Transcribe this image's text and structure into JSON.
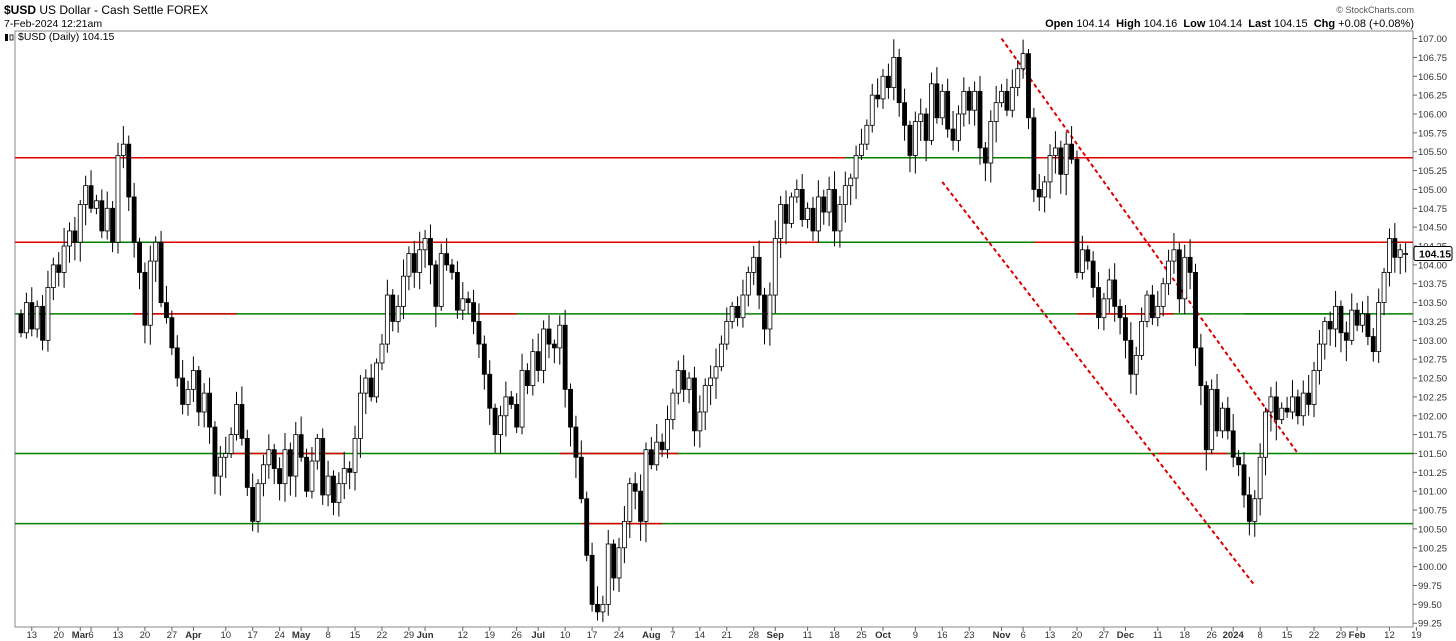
{
  "header": {
    "symbol": "$USD",
    "description": "US Dollar - Cash Settle FOREX",
    "timestamp": "7-Feb-2024 12:21am",
    "legend": "$USD (Daily) 104.15",
    "brand": "© StockCharts.com",
    "stats": {
      "open_label": "Open",
      "open": "104.14",
      "high_label": "High",
      "high": "104.16",
      "low_label": "Low",
      "low": "104.14",
      "last_label": "Last",
      "last": "104.15",
      "chg_label": "Chg",
      "chg": "+0.08 (+0.08%)"
    }
  },
  "chart_data": {
    "type": "candlestick",
    "colors": {
      "up": "#ffffff",
      "down": "#000000",
      "resistance": "#dd0000",
      "support": "#008000",
      "trend": "#dd0000"
    },
    "y_axis": {
      "side": "right",
      "range": [
        99.2,
        107.1
      ],
      "ticks": [
        "99.25",
        "99.50",
        "99.75",
        "100.00",
        "100.25",
        "100.50",
        "100.75",
        "101.00",
        "101.25",
        "101.50",
        "101.75",
        "102.00",
        "102.25",
        "102.50",
        "102.75",
        "103.00",
        "103.25",
        "103.50",
        "103.75",
        "104.00",
        "104.25",
        "104.50",
        "104.75",
        "105.00",
        "105.25",
        "105.50",
        "105.75",
        "106.00",
        "106.25",
        "106.50",
        "106.75",
        "107.00"
      ]
    },
    "x_axis": {
      "n_days": 258,
      "labels": [
        {
          "label": "13",
          "i": 2
        },
        {
          "label": "20",
          "i": 7
        },
        {
          "label": "Mar",
          "i": 11,
          "bold": true
        },
        {
          "label": "6",
          "i": 13
        },
        {
          "label": "13",
          "i": 18
        },
        {
          "label": "20",
          "i": 23
        },
        {
          "label": "27",
          "i": 28
        },
        {
          "label": "Apr",
          "i": 32,
          "bold": true
        },
        {
          "label": "10",
          "i": 38
        },
        {
          "label": "17",
          "i": 43
        },
        {
          "label": "24",
          "i": 48
        },
        {
          "label": "May",
          "i": 52,
          "bold": true
        },
        {
          "label": "8",
          "i": 57
        },
        {
          "label": "15",
          "i": 62
        },
        {
          "label": "22",
          "i": 67
        },
        {
          "label": "29",
          "i": 72
        },
        {
          "label": "Jun",
          "i": 75,
          "bold": true
        },
        {
          "label": "12",
          "i": 82
        },
        {
          "label": "19",
          "i": 87
        },
        {
          "label": "26",
          "i": 92
        },
        {
          "label": "Jul",
          "i": 96,
          "bold": true
        },
        {
          "label": "10",
          "i": 101
        },
        {
          "label": "17",
          "i": 106
        },
        {
          "label": "24",
          "i": 111
        },
        {
          "label": "Aug",
          "i": 117,
          "bold": true
        },
        {
          "label": "7",
          "i": 121
        },
        {
          "label": "14",
          "i": 126
        },
        {
          "label": "21",
          "i": 131
        },
        {
          "label": "28",
          "i": 136
        },
        {
          "label": "Sep",
          "i": 140,
          "bold": true
        },
        {
          "label": "11",
          "i": 146
        },
        {
          "label": "18",
          "i": 151
        },
        {
          "label": "25",
          "i": 156
        },
        {
          "label": "Oct",
          "i": 160,
          "bold": true
        },
        {
          "label": "9",
          "i": 166
        },
        {
          "label": "16",
          "i": 171
        },
        {
          "label": "23",
          "i": 176
        },
        {
          "label": "Nov",
          "i": 182,
          "bold": true
        },
        {
          "label": "6",
          "i": 186
        },
        {
          "label": "13",
          "i": 191
        },
        {
          "label": "20",
          "i": 196
        },
        {
          "label": "27",
          "i": 201
        },
        {
          "label": "Dec",
          "i": 205,
          "bold": true
        },
        {
          "label": "11",
          "i": 211
        },
        {
          "label": "18",
          "i": 216
        },
        {
          "label": "26",
          "i": 221
        },
        {
          "label": "2024",
          "i": 225,
          "bold": true
        },
        {
          "label": "8",
          "i": 230
        },
        {
          "label": "15",
          "i": 235
        },
        {
          "label": "22",
          "i": 240
        },
        {
          "label": "29",
          "i": 245
        },
        {
          "label": "Feb",
          "i": 248,
          "bold": true
        },
        {
          "label": "12",
          "i": 254
        },
        {
          "label": "19",
          "i": 259
        }
      ]
    },
    "horizontal_lines": [
      {
        "color": "resistance",
        "segments": [
          {
            "y": 105.42,
            "x0": 0,
            "x1": 258
          }
        ]
      },
      {
        "color": "resistance",
        "segments": [
          {
            "y": 104.3,
            "x0": 0,
            "x1": 258
          }
        ]
      },
      {
        "color": "support",
        "segments": [
          {
            "y": 103.35,
            "x0": 0,
            "x1": 258
          }
        ]
      },
      {
        "color": "support",
        "segments": [
          {
            "y": 101.5,
            "x0": 0,
            "x1": 258
          }
        ]
      },
      {
        "color": "support",
        "segments": [
          {
            "y": 100.57,
            "x0": 0,
            "x1": 258
          }
        ]
      },
      {
        "color": "support",
        "segments": [
          {
            "y": 105.42,
            "x0": 153,
            "x1": 188
          },
          {
            "y": 104.3,
            "x0": 10,
            "x1": 26
          },
          {
            "y": 104.3,
            "x0": 148,
            "x1": 188
          },
          {
            "y": 103.35,
            "x0": 227,
            "x1": 250
          }
        ]
      },
      {
        "color": "resistance",
        "segments": [
          {
            "y": 103.35,
            "x0": 21,
            "x1": 40
          },
          {
            "y": 103.35,
            "x0": 85,
            "x1": 92
          },
          {
            "y": 103.35,
            "x0": 196,
            "x1": 214
          },
          {
            "y": 101.5,
            "x0": 39,
            "x1": 60
          },
          {
            "y": 101.5,
            "x0": 100,
            "x1": 122
          },
          {
            "y": 101.5,
            "x0": 211,
            "x1": 224
          },
          {
            "y": 100.57,
            "x0": 104,
            "x1": 119
          }
        ]
      }
    ],
    "trend_lines": [
      {
        "from": {
          "i": 182,
          "y": 107.0
        },
        "to": {
          "i": 237,
          "y": 101.5
        }
      },
      {
        "from": {
          "i": 171,
          "y": 105.1
        },
        "to": {
          "i": 229,
          "y": 99.75
        }
      }
    ],
    "candles": [
      [
        103.35,
        103.1
      ],
      [
        103.1,
        103.5
      ],
      [
        103.5,
        103.15
      ],
      [
        103.15,
        103.45
      ],
      [
        103.45,
        103.0
      ],
      [
        103.0,
        103.7
      ],
      [
        103.7,
        104.0
      ],
      [
        104.0,
        103.9
      ],
      [
        103.9,
        104.25
      ],
      [
        104.25,
        104.45
      ],
      [
        104.45,
        104.3
      ],
      [
        104.3,
        104.8
      ],
      [
        104.8,
        105.05
      ],
      [
        105.05,
        104.75
      ],
      [
        104.75,
        104.85
      ],
      [
        104.85,
        104.45
      ],
      [
        104.45,
        104.75
      ],
      [
        104.75,
        104.3
      ],
      [
        104.3,
        105.45
      ],
      [
        105.45,
        105.6
      ],
      [
        105.6,
        104.9
      ],
      [
        104.9,
        104.3
      ],
      [
        104.3,
        103.9
      ],
      [
        103.9,
        103.2
      ],
      [
        103.2,
        104.05
      ],
      [
        104.05,
        104.3
      ],
      [
        104.3,
        103.5
      ],
      [
        103.5,
        103.3
      ],
      [
        103.3,
        102.9
      ],
      [
        102.9,
        102.5
      ],
      [
        102.5,
        102.15
      ],
      [
        102.15,
        102.35
      ],
      [
        102.35,
        102.6
      ],
      [
        102.6,
        102.05
      ],
      [
        102.05,
        102.3
      ],
      [
        102.3,
        101.85
      ],
      [
        101.85,
        101.2
      ],
      [
        101.2,
        101.45
      ],
      [
        101.45,
        101.5
      ],
      [
        101.5,
        101.75
      ],
      [
        101.75,
        102.15
      ],
      [
        102.15,
        101.7
      ],
      [
        101.7,
        101.05
      ],
      [
        101.05,
        100.6
      ],
      [
        100.6,
        101.1
      ],
      [
        101.1,
        101.35
      ],
      [
        101.35,
        101.55
      ],
      [
        101.55,
        101.3
      ],
      [
        101.3,
        101.1
      ],
      [
        101.1,
        101.55
      ],
      [
        101.55,
        101.2
      ],
      [
        101.2,
        101.75
      ],
      [
        101.75,
        101.45
      ],
      [
        101.45,
        101.0
      ],
      [
        101.0,
        101.4
      ],
      [
        101.4,
        101.7
      ],
      [
        101.7,
        100.95
      ],
      [
        100.95,
        101.2
      ],
      [
        101.2,
        100.85
      ],
      [
        100.85,
        101.1
      ],
      [
        101.1,
        101.3
      ],
      [
        101.3,
        101.25
      ],
      [
        101.25,
        101.7
      ],
      [
        101.7,
        102.3
      ],
      [
        102.3,
        102.5
      ],
      [
        102.5,
        102.25
      ],
      [
        102.25,
        102.7
      ],
      [
        102.7,
        102.95
      ],
      [
        102.95,
        103.6
      ],
      [
        103.6,
        103.25
      ],
      [
        103.25,
        103.45
      ],
      [
        103.45,
        103.85
      ],
      [
        103.85,
        104.15
      ],
      [
        104.15,
        103.9
      ],
      [
        103.9,
        104.2
      ],
      [
        104.2,
        104.35
      ],
      [
        104.35,
        104.0
      ],
      [
        104.0,
        103.45
      ],
      [
        103.45,
        104.15
      ],
      [
        104.15,
        104.0
      ],
      [
        104.0,
        103.9
      ],
      [
        103.9,
        103.4
      ],
      [
        103.4,
        103.55
      ],
      [
        103.55,
        103.5
      ],
      [
        103.5,
        103.25
      ],
      [
        103.25,
        102.95
      ],
      [
        102.95,
        102.55
      ],
      [
        102.55,
        102.1
      ],
      [
        102.1,
        101.75
      ],
      [
        101.75,
        102.0
      ],
      [
        102.0,
        102.25
      ],
      [
        102.25,
        102.15
      ],
      [
        102.15,
        101.85
      ],
      [
        101.85,
        102.6
      ],
      [
        102.6,
        102.4
      ],
      [
        102.4,
        102.85
      ],
      [
        102.85,
        102.6
      ],
      [
        102.6,
        103.15
      ],
      [
        103.15,
        102.95
      ],
      [
        102.95,
        102.9
      ],
      [
        102.9,
        103.2
      ],
      [
        103.2,
        102.35
      ],
      [
        102.35,
        101.85
      ],
      [
        101.85,
        101.45
      ],
      [
        101.45,
        100.9
      ],
      [
        100.9,
        100.15
      ],
      [
        100.15,
        99.5
      ],
      [
        99.5,
        99.4
      ],
      [
        99.4,
        99.5
      ],
      [
        99.5,
        100.3
      ],
      [
        100.3,
        99.85
      ],
      [
        99.85,
        100.25
      ],
      [
        100.25,
        100.6
      ],
      [
        100.6,
        101.1
      ],
      [
        101.1,
        101.0
      ],
      [
        101.0,
        100.6
      ],
      [
        100.6,
        101.55
      ],
      [
        101.55,
        101.35
      ],
      [
        101.35,
        101.65
      ],
      [
        101.65,
        101.55
      ],
      [
        101.55,
        101.95
      ],
      [
        101.95,
        102.3
      ],
      [
        102.3,
        102.6
      ],
      [
        102.6,
        102.35
      ],
      [
        102.35,
        102.5
      ],
      [
        102.5,
        101.8
      ],
      [
        101.8,
        102.05
      ],
      [
        102.05,
        102.4
      ],
      [
        102.4,
        102.5
      ],
      [
        102.5,
        102.65
      ],
      [
        102.65,
        102.95
      ],
      [
        102.95,
        103.25
      ],
      [
        103.25,
        103.45
      ],
      [
        103.45,
        103.3
      ],
      [
        103.3,
        103.6
      ],
      [
        103.6,
        103.9
      ],
      [
        103.9,
        104.1
      ],
      [
        104.1,
        103.6
      ],
      [
        103.6,
        103.15
      ],
      [
        103.15,
        103.6
      ],
      [
        103.6,
        104.35
      ],
      [
        104.35,
        104.8
      ],
      [
        104.8,
        104.55
      ],
      [
        104.55,
        104.9
      ],
      [
        104.9,
        105.0
      ],
      [
        105.0,
        104.6
      ],
      [
        104.6,
        104.75
      ],
      [
        104.75,
        104.45
      ],
      [
        104.45,
        104.9
      ],
      [
        104.9,
        104.7
      ],
      [
        104.7,
        105.0
      ],
      [
        105.0,
        104.45
      ],
      [
        104.45,
        104.8
      ],
      [
        104.8,
        105.05
      ],
      [
        105.05,
        105.15
      ],
      [
        105.15,
        105.45
      ],
      [
        105.45,
        105.6
      ],
      [
        105.6,
        105.85
      ],
      [
        105.85,
        106.25
      ],
      [
        106.25,
        106.2
      ],
      [
        106.2,
        106.5
      ],
      [
        106.5,
        106.35
      ],
      [
        106.35,
        106.75
      ],
      [
        106.75,
        106.15
      ],
      [
        106.15,
        105.85
      ],
      [
        105.85,
        105.45
      ],
      [
        105.45,
        105.9
      ],
      [
        105.9,
        106.0
      ],
      [
        106.0,
        105.65
      ],
      [
        105.65,
        106.4
      ],
      [
        106.4,
        105.95
      ],
      [
        105.95,
        106.3
      ],
      [
        106.3,
        105.8
      ],
      [
        105.8,
        105.65
      ],
      [
        105.65,
        106.0
      ],
      [
        106.0,
        106.3
      ],
      [
        106.3,
        106.05
      ],
      [
        106.05,
        106.3
      ],
      [
        106.3,
        105.55
      ],
      [
        105.55,
        105.35
      ],
      [
        105.35,
        105.9
      ],
      [
        105.9,
        106.15
      ],
      [
        106.15,
        106.3
      ],
      [
        106.3,
        106.05
      ],
      [
        106.05,
        106.35
      ],
      [
        106.35,
        106.6
      ],
      [
        106.6,
        106.8
      ],
      [
        106.8,
        105.95
      ],
      [
        105.95,
        105.0
      ],
      [
        105.0,
        104.9
      ],
      [
        104.9,
        105.1
      ],
      [
        105.1,
        105.45
      ],
      [
        105.45,
        105.55
      ],
      [
        105.55,
        105.2
      ],
      [
        105.2,
        105.6
      ],
      [
        105.6,
        105.4
      ],
      [
        105.4,
        103.9
      ],
      [
        103.9,
        104.2
      ],
      [
        104.2,
        104.05
      ],
      [
        104.05,
        103.7
      ],
      [
        103.7,
        103.3
      ],
      [
        103.3,
        103.55
      ],
      [
        103.55,
        103.8
      ],
      [
        103.8,
        103.45
      ],
      [
        103.45,
        103.3
      ],
      [
        103.3,
        103.0
      ],
      [
        103.0,
        102.55
      ],
      [
        102.55,
        102.8
      ],
      [
        102.8,
        103.25
      ],
      [
        103.25,
        103.6
      ],
      [
        103.6,
        103.3
      ],
      [
        103.3,
        103.45
      ],
      [
        103.45,
        103.75
      ],
      [
        103.75,
        104.05
      ],
      [
        104.05,
        104.2
      ],
      [
        104.2,
        103.55
      ],
      [
        103.55,
        104.1
      ],
      [
        104.1,
        103.9
      ],
      [
        103.9,
        102.9
      ],
      [
        102.9,
        102.4
      ],
      [
        102.4,
        101.55
      ],
      [
        101.55,
        102.35
      ],
      [
        102.35,
        101.8
      ],
      [
        101.8,
        102.1
      ],
      [
        102.1,
        101.8
      ],
      [
        101.8,
        101.45
      ],
      [
        101.45,
        101.35
      ],
      [
        101.35,
        100.95
      ],
      [
        100.95,
        100.6
      ],
      [
        100.6,
        100.9
      ],
      [
        100.9,
        101.45
      ],
      [
        101.45,
        102.05
      ],
      [
        102.05,
        102.25
      ],
      [
        102.25,
        101.95
      ],
      [
        101.95,
        102.1
      ],
      [
        102.1,
        102.05
      ],
      [
        102.05,
        102.25
      ],
      [
        102.25,
        102.0
      ],
      [
        102.0,
        102.3
      ],
      [
        102.3,
        102.15
      ],
      [
        102.15,
        102.6
      ],
      [
        102.6,
        102.95
      ],
      [
        102.95,
        103.25
      ],
      [
        103.25,
        103.15
      ],
      [
        103.15,
        103.45
      ],
      [
        103.45,
        103.1
      ],
      [
        103.1,
        103.0
      ],
      [
        103.0,
        103.4
      ],
      [
        103.4,
        103.2
      ],
      [
        103.2,
        103.35
      ],
      [
        103.35,
        103.05
      ],
      [
        103.05,
        102.85
      ],
      [
        102.85,
        103.5
      ],
      [
        103.5,
        103.9
      ],
      [
        103.9,
        104.35
      ],
      [
        104.35,
        104.1
      ],
      [
        104.1,
        104.2
      ],
      [
        104.14,
        104.15
      ]
    ],
    "last_value": "104.15"
  }
}
